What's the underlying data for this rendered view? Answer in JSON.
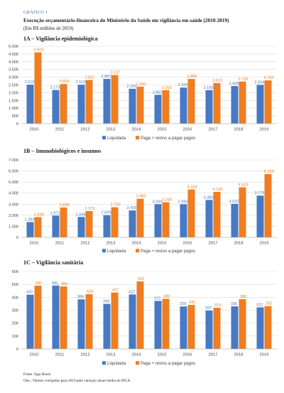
{
  "figure": {
    "label": "GRÁFICO 1",
    "accent_color": "#2f6eb5",
    "title": "Execução orçamentário-financeira do Ministério da Saúde em vigilância em saúde (2010-2019)",
    "unit": "(Em R$ milhões de 2019)"
  },
  "chart_data": [
    {
      "type": "bar",
      "title": "1A – Vigilância epidemiológica",
      "categories": [
        "2010",
        "2011",
        "2012",
        "2013",
        "2014",
        "2015",
        "2016",
        "2017",
        "2018",
        "2019"
      ],
      "series": [
        {
          "name": "Liquidada",
          "color": "#4779c4",
          "values": [
            2516,
            2173,
            2515,
            2887,
            2250,
            1862,
            2329,
            2165,
            2428,
            2504
          ]
        },
        {
          "name": "Paga + restos a pagar pagos",
          "color": "#ef7d22",
          "values": [
            4603,
            2559,
            2821,
            3137,
            2390,
            2163,
            2886,
            2616,
            2716,
            2792
          ]
        }
      ],
      "ylim": [
        0,
        5000
      ],
      "yticks": [
        0,
        500,
        1000,
        1500,
        2000,
        2500,
        3000,
        3500,
        4000,
        4500,
        5000
      ],
      "grid": true,
      "legend": "bottom"
    },
    {
      "type": "bar",
      "title": "1B – Imunobiológicos e insumos",
      "categories": [
        "2010",
        "2011",
        "2012",
        "2013",
        "2014",
        "2015",
        "2016",
        "2017",
        "2018",
        "2019"
      ],
      "series": [
        {
          "name": "Liquidada",
          "color": "#4779c4",
          "values": [
            1383,
            1971,
            1844,
            2009,
            2435,
            3000,
            2990,
            3380,
            3032,
            3775
          ]
        },
        {
          "name": "Paga + restos a pagar pagos",
          "color": "#ef7d22",
          "values": [
            1828,
            2698,
            2376,
            2720,
            3489,
            3168,
            4334,
            4109,
            4523,
            5723
          ]
        }
      ],
      "ylim": [
        0,
        7000
      ],
      "yticks": [
        0,
        1000,
        2000,
        3000,
        4000,
        5000,
        6000,
        7000
      ],
      "grid": true,
      "legend": "bottom"
    },
    {
      "type": "bar",
      "title": "1C – Vigilância sanitária",
      "categories": [
        "2010",
        "2011",
        "2012",
        "2013",
        "2014",
        "2015",
        "2016",
        "2017",
        "2018",
        "2019"
      ],
      "series": [
        {
          "name": "Liquidada",
          "color": "#4779c4",
          "values": [
            420,
            491,
            384,
            349,
            422,
            372,
            329,
            297,
            330,
            322
          ]
        },
        {
          "name": "Paga + restos a pagar pagos",
          "color": "#ef7d22",
          "values": [
            490,
            484,
            424,
            437,
            523,
            388,
            341,
            319,
            385,
            332
          ]
        }
      ],
      "ylim": [
        0,
        600
      ],
      "yticks": [
        0,
        100,
        200,
        300,
        400,
        500,
        600
      ],
      "grid": true,
      "legend": "bottom"
    }
  ],
  "footer": {
    "source": "Fonte: Siga Brasil.",
    "note": "Obs.: Valores corrigidos para 2019 pela variação anual média do IPCA."
  }
}
